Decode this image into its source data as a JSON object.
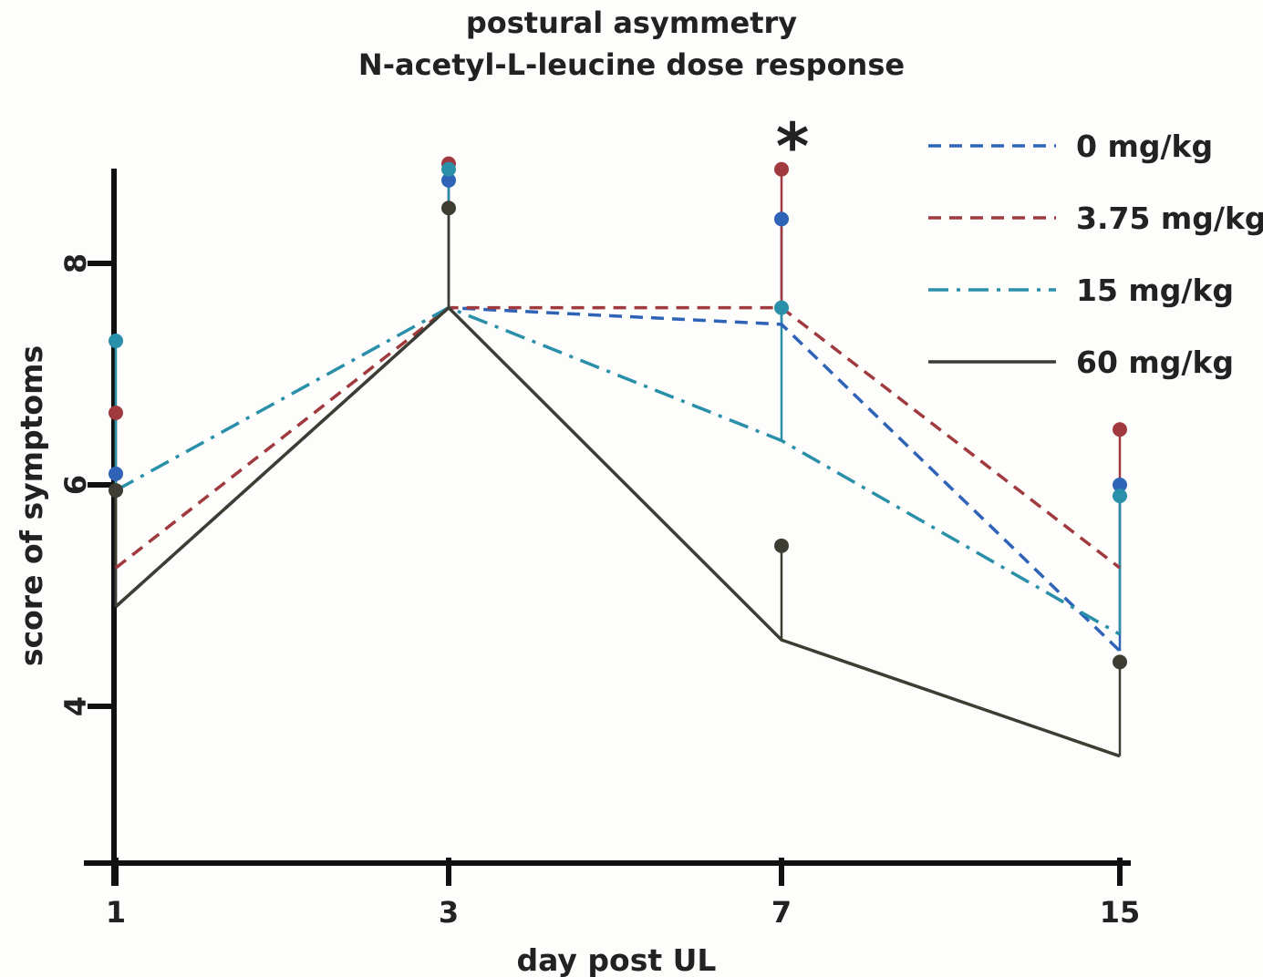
{
  "chart_data": {
    "type": "line",
    "title": "postural asymmetry",
    "subtitle": "N-acetyl-L-leucine dose response",
    "xlabel": "day post UL",
    "ylabel": "score of symptoms",
    "categories": [
      "1",
      "3",
      "7",
      "15"
    ],
    "y_ticks": [
      "4",
      "6",
      "8"
    ],
    "ylim": [
      2.7,
      8.8
    ],
    "grid": false,
    "legend_position": "top-right",
    "annotations": [
      {
        "text": "*",
        "category": "7"
      }
    ],
    "series": [
      {
        "name": "0 mg/kg",
        "color": "#2e63b8",
        "dash": "dashed",
        "values": [
          4.9,
          7.6,
          7.45,
          4.5
        ],
        "error_upper": [
          6.1,
          8.75,
          8.4,
          6.0
        ]
      },
      {
        "name": "3.75 mg/kg",
        "color": "#a03a3e",
        "dash": "dashed",
        "values": [
          5.25,
          7.6,
          7.6,
          5.25
        ],
        "error_upper": [
          6.65,
          8.9,
          8.85,
          6.5
        ]
      },
      {
        "name": "15 mg/kg",
        "color": "#2a8fa8",
        "dash": "dashdot",
        "values": [
          5.95,
          7.6,
          6.4,
          4.65
        ],
        "error_upper": [
          7.3,
          8.85,
          7.6,
          5.9
        ]
      },
      {
        "name": "60 mg/kg",
        "color": "#3d3d33",
        "dash": "solid",
        "values": [
          4.9,
          7.6,
          4.6,
          3.55
        ],
        "error_upper": [
          5.95,
          8.5,
          5.45,
          4.4
        ]
      }
    ]
  }
}
